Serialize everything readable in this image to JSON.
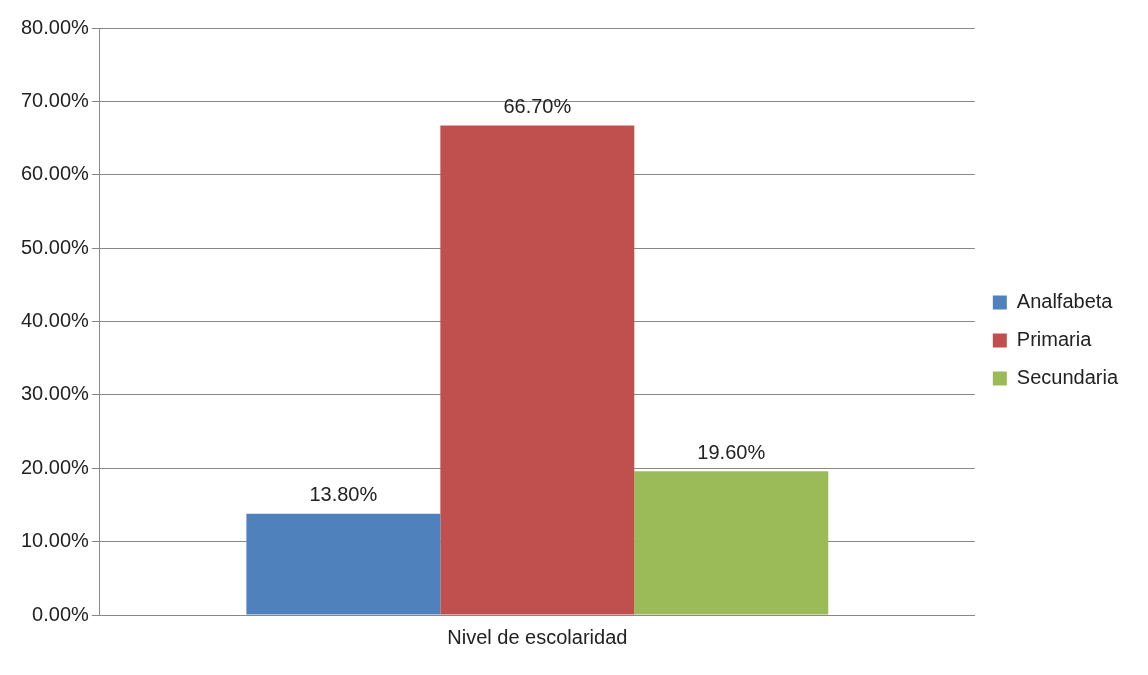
{
  "chart_data": {
    "type": "bar",
    "categories": [
      "Nivel de escolaridad"
    ],
    "series": [
      {
        "name": "Analfabeta",
        "color": "#4f81bd",
        "values": [
          13.8
        ],
        "value_labels": [
          "13.80%"
        ]
      },
      {
        "name": "Primaria",
        "color": "#c0504d",
        "values": [
          66.7
        ],
        "value_labels": [
          "66.70%"
        ]
      },
      {
        "name": "Secundaria",
        "color": "#9bbb59",
        "values": [
          19.6
        ],
        "value_labels": [
          "19.60%"
        ]
      }
    ],
    "ylim": [
      0,
      80
    ],
    "yticks": [
      {
        "value": 0,
        "label": "0.00%"
      },
      {
        "value": 10,
        "label": "10.00%"
      },
      {
        "value": 20,
        "label": "20.00%"
      },
      {
        "value": 30,
        "label": "30.00%"
      },
      {
        "value": 40,
        "label": "40.00%"
      },
      {
        "value": 50,
        "label": "50.00%"
      },
      {
        "value": 60,
        "label": "60.00%"
      },
      {
        "value": 70,
        "label": "70.00%"
      },
      {
        "value": 80,
        "label": "80.00%"
      }
    ],
    "grid": "y",
    "legend": "right"
  }
}
